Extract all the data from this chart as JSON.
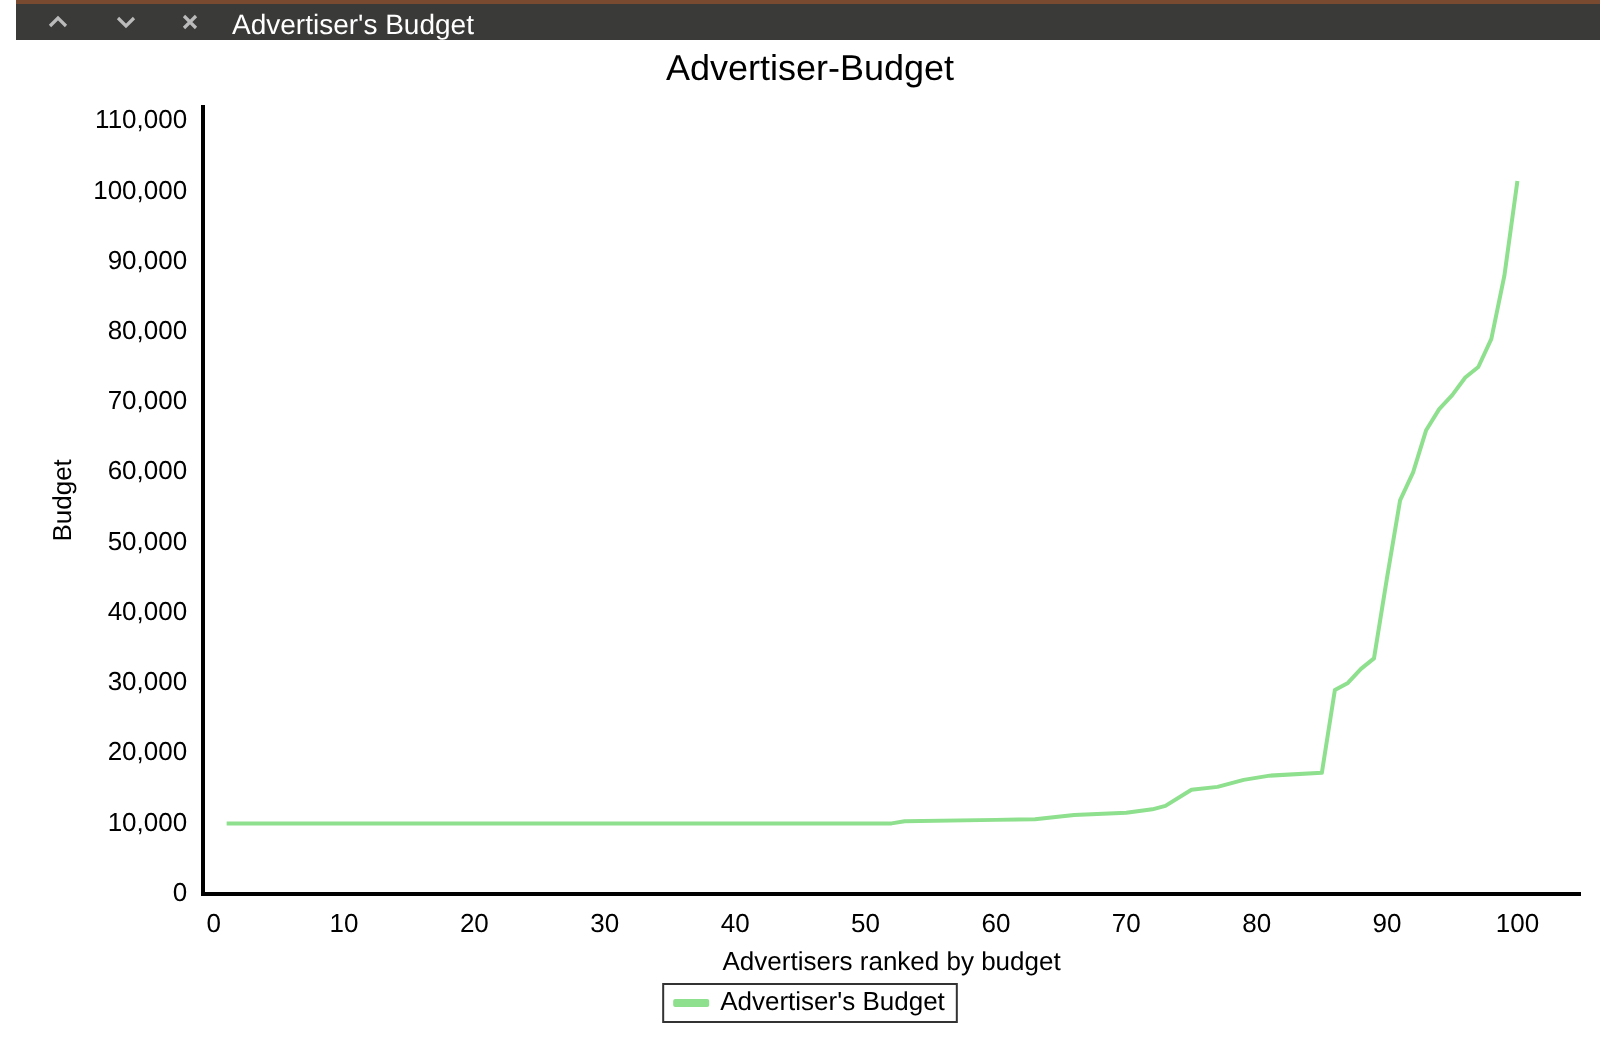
{
  "chart_data": {
    "type": "line",
    "title": "Advertiser-Budget",
    "xlabel": "Advertisers ranked by budget",
    "ylabel": "Budget",
    "annotations": [
      "Advertiser's Budget"
    ],
    "x": [
      1,
      52,
      53,
      60,
      63,
      66,
      70,
      72,
      73,
      75,
      77,
      79,
      81,
      85,
      86,
      87,
      88,
      89,
      90,
      91,
      92,
      93,
      94,
      95,
      96,
      97,
      98,
      99,
      100
    ],
    "series": [
      {
        "name": "Advertiser's Budget",
        "color": "#8ee08e",
        "values": [
          10000,
          10000,
          10300,
          10500,
          10600,
          11200,
          11500,
          12000,
          12500,
          14800,
          15200,
          16200,
          16800,
          17200,
          29000,
          30000,
          32000,
          33500,
          45000,
          56000,
          60000,
          66000,
          69000,
          71000,
          73500,
          75000,
          79000,
          88000,
          101500
        ]
      }
    ],
    "xlim": [
      -0.8,
      104.8
    ],
    "xticks": [
      0,
      10,
      20,
      30,
      40,
      50,
      60,
      70,
      80,
      90,
      100
    ],
    "ylim": [
      0,
      112000
    ],
    "yticks": [
      {
        "value": 0,
        "label": "0"
      },
      {
        "value": 10000,
        "label": "10,000"
      },
      {
        "value": 20000,
        "label": "20,000"
      },
      {
        "value": 30000,
        "label": "30,000"
      },
      {
        "value": 40000,
        "label": "40,000"
      },
      {
        "value": 50000,
        "label": "50,000"
      },
      {
        "value": 60000,
        "label": "60,000"
      },
      {
        "value": 70000,
        "label": "70,000"
      },
      {
        "value": 80000,
        "label": "80,000"
      },
      {
        "value": 90000,
        "label": "90,000"
      },
      {
        "value": 100000,
        "label": "100,000"
      },
      {
        "value": 110000,
        "label": "110,000"
      }
    ],
    "grid": false,
    "legend": "bottom",
    "marker": "none",
    "line_style": "solid"
  }
}
